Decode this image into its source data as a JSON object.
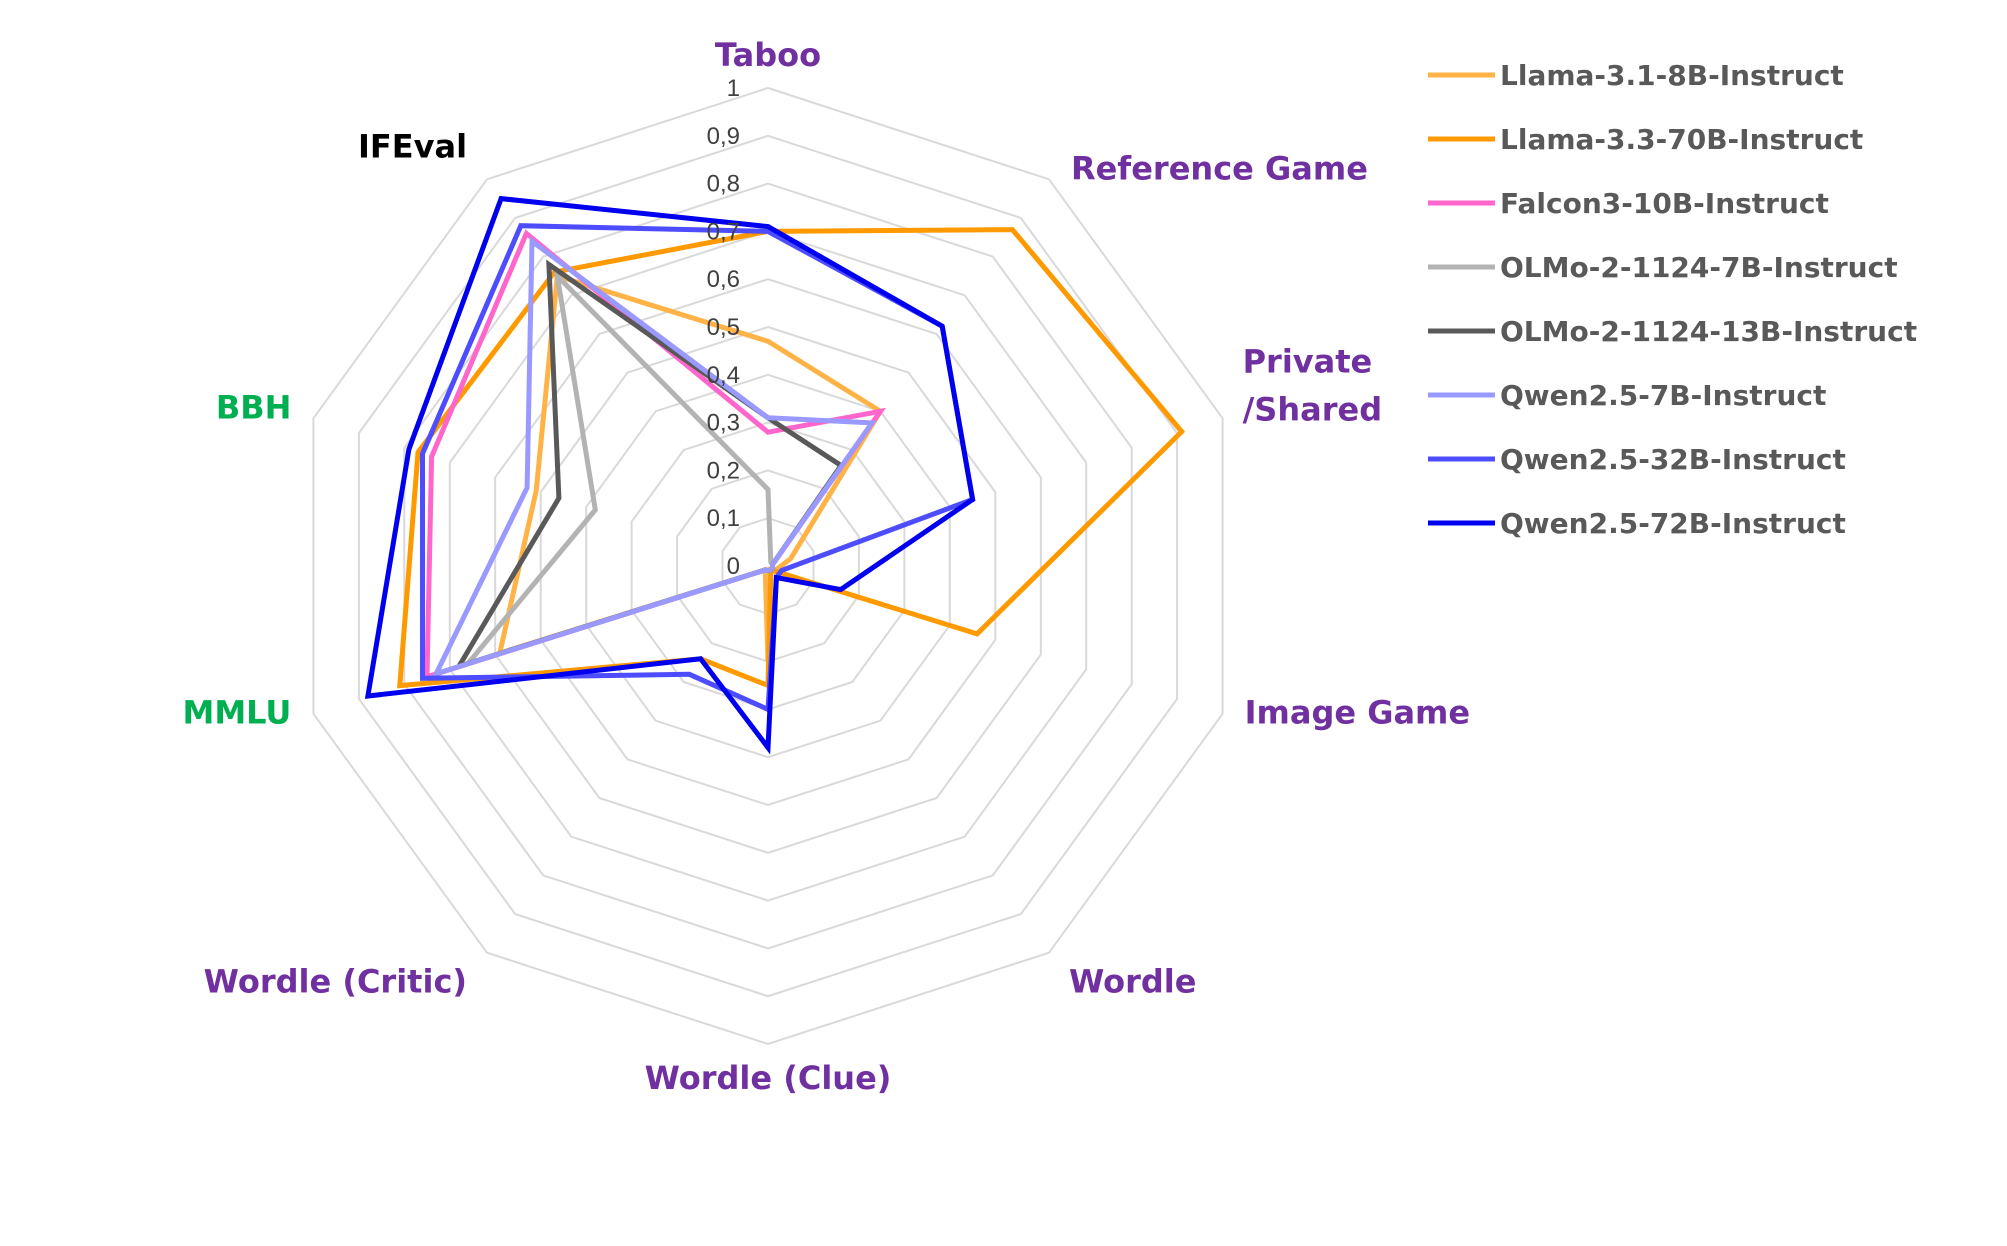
{
  "chart_data": {
    "type": "radar",
    "title": "",
    "axes": [
      {
        "label": "Taboo",
        "color": "#7030a0"
      },
      {
        "label": "Reference Game",
        "color": "#7030a0"
      },
      {
        "label": "Private\n/Shared",
        "color": "#7030a0"
      },
      {
        "label": "Image Game",
        "color": "#7030a0"
      },
      {
        "label": "Wordle",
        "color": "#7030a0"
      },
      {
        "label": "Wordle (Clue)",
        "color": "#7030a0"
      },
      {
        "label": "Wordle (Critic)",
        "color": "#7030a0"
      },
      {
        "label": "MMLU",
        "color": "#00b050"
      },
      {
        "label": "BBH",
        "color": "#00b050"
      },
      {
        "label": "IFEval",
        "color": "#000000"
      }
    ],
    "ticks": [
      "0",
      "0,1",
      "0,2",
      "0,3",
      "0,4",
      "0,5",
      "0,6",
      "0,7",
      "0,8",
      "0,9",
      "1"
    ],
    "range": [
      0,
      1
    ],
    "legend_position": "top-right",
    "series": [
      {
        "name": "Llama-3.1-8B-Instruct",
        "color": "#ffb347",
        "values": [
          0.47,
          0.4,
          0.05,
          0.02,
          0.01,
          0.2,
          0.01,
          0.59,
          0.51,
          0.75
        ]
      },
      {
        "name": "Llama-3.3-70B-Instruct",
        "color": "#ff9900",
        "values": [
          0.7,
          0.87,
          0.91,
          0.46,
          0.01,
          0.25,
          0.24,
          0.81,
          0.77,
          0.76
        ]
      },
      {
        "name": "Falcon3-10B-Instruct",
        "color": "#ff66cc",
        "values": [
          0.28,
          0.4,
          0.01,
          0.01,
          0.01,
          0.01,
          0.01,
          0.75,
          0.74,
          0.86
        ]
      },
      {
        "name": "OLMo-2-1124-7B-Instruct",
        "color": "#b3b3b3",
        "values": [
          0.16,
          0.01,
          0.01,
          0.01,
          0.01,
          0.01,
          0.01,
          0.66,
          0.38,
          0.75
        ]
      },
      {
        "name": "OLMo-2-1124-13B-Instruct",
        "color": "#595959",
        "values": [
          0.31,
          0.26,
          0.01,
          0.01,
          0.01,
          0.01,
          0.01,
          0.68,
          0.46,
          0.78
        ]
      },
      {
        "name": "Qwen2.5-7B-Instruct",
        "color": "#9999ff",
        "values": [
          0.31,
          0.37,
          0.01,
          0.01,
          0.01,
          0.01,
          0.01,
          0.73,
          0.53,
          0.84
        ]
      },
      {
        "name": "Qwen2.5-32B-Instruct",
        "color": "#4d4dff",
        "values": [
          0.7,
          0.62,
          0.45,
          0.03,
          0.03,
          0.3,
          0.28,
          0.76,
          0.76,
          0.88
        ]
      },
      {
        "name": "Qwen2.5-72B-Instruct",
        "color": "#0000ee",
        "values": [
          0.71,
          0.62,
          0.45,
          0.16,
          0.03,
          0.38,
          0.24,
          0.88,
          0.79,
          0.95
        ]
      }
    ]
  }
}
